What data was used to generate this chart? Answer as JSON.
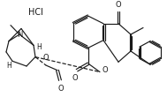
{
  "bg_color": "#ffffff",
  "line_color": "#1a1a1a",
  "lw": 0.85,
  "fs": 6.0,
  "figsize": [
    1.89,
    1.1
  ],
  "dpi": 100,
  "hcl": "HCl",
  "N_label": "N",
  "H_label1": "H",
  "H_label2": "H",
  "O_label": "O",
  "O2_label": "O",
  "O3_label": "O"
}
